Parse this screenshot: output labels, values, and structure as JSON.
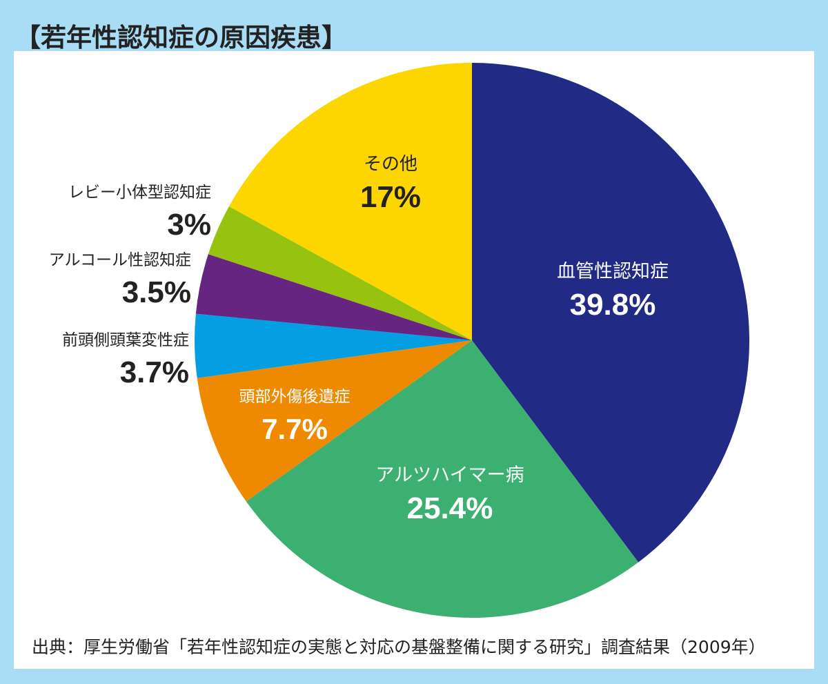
{
  "title": "【若年性認知症の原因疾患】",
  "source": "出典：厚生労働省「若年性認知症の実態と対応の基盤整備に関する研究」調査結果（2009年）",
  "chart_data": {
    "type": "pie",
    "title": "【若年性認知症の原因疾患】",
    "start": "12 o'clock",
    "direction": "clockwise",
    "slices": [
      {
        "label": "血管性認知症",
        "value_label": "39.8%",
        "value": 39.8,
        "color": "#212a84",
        "label_color": "#ffffff",
        "label_position": "inside"
      },
      {
        "label": "アルツハイマー病",
        "value_label": "25.4%",
        "value": 25.4,
        "color": "#3bb070",
        "label_color": "#ffffff",
        "label_position": "inside"
      },
      {
        "label": "頭部外傷後遺症",
        "value_label": "7.7%",
        "value": 7.7,
        "color": "#ef8a00",
        "label_color": "#ffffff",
        "label_position": "inside"
      },
      {
        "label": "前頭側頭葉変性症",
        "value_label": "3.7%",
        "value": 3.7,
        "color": "#039fe2",
        "label_color": "#222222",
        "label_position": "outside"
      },
      {
        "label": "アルコール性認知症",
        "value_label": "3.5%",
        "value": 3.5,
        "color": "#662581",
        "label_color": "#222222",
        "label_position": "outside"
      },
      {
        "label": "レビー小体型認知症",
        "value_label": "3%",
        "value": 3.0,
        "color": "#97c20f",
        "label_color": "#222222",
        "label_position": "outside"
      },
      {
        "label": "その他",
        "value_label": "17%",
        "value": 17.0,
        "color": "#fdd600",
        "label_color": "#222222",
        "label_position": "inside"
      }
    ]
  }
}
